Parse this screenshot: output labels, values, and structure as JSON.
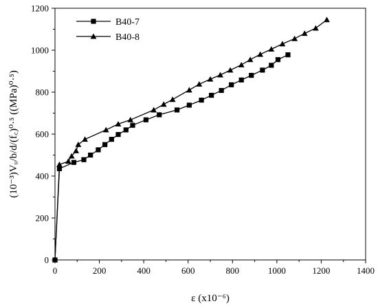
{
  "chart_data": {
    "type": "line",
    "xlabel": "ε (x10⁻⁶)",
    "ylabel": "(10⁻³)Vᵤ/b/d/(f꜀)⁰·⁵ ((MPa)⁰·⁵)",
    "xlim": [
      0,
      1400
    ],
    "ylim": [
      0,
      1200
    ],
    "x_ticks": [
      0,
      200,
      400,
      600,
      800,
      1000,
      1200,
      1400
    ],
    "y_ticks": [
      0,
      200,
      400,
      600,
      800,
      1000,
      1200
    ],
    "grid": false,
    "legend": "top-left",
    "series": [
      {
        "name": "B40-7",
        "marker": "square",
        "color": "#000000",
        "points": [
          [
            0,
            0
          ],
          [
            20,
            435
          ],
          [
            85,
            465
          ],
          [
            130,
            478
          ],
          [
            160,
            500
          ],
          [
            195,
            525
          ],
          [
            225,
            550
          ],
          [
            255,
            575
          ],
          [
            285,
            598
          ],
          [
            320,
            620
          ],
          [
            350,
            642
          ],
          [
            410,
            668
          ],
          [
            470,
            692
          ],
          [
            550,
            715
          ],
          [
            605,
            738
          ],
          [
            660,
            762
          ],
          [
            705,
            785
          ],
          [
            750,
            808
          ],
          [
            795,
            835
          ],
          [
            840,
            858
          ],
          [
            885,
            880
          ],
          [
            935,
            905
          ],
          [
            975,
            928
          ],
          [
            1005,
            955
          ],
          [
            1050,
            978
          ]
        ]
      },
      {
        "name": "B40-8",
        "marker": "triangle",
        "color": "#000000",
        "points": [
          [
            0,
            0
          ],
          [
            20,
            455
          ],
          [
            60,
            470
          ],
          [
            75,
            495
          ],
          [
            95,
            520
          ],
          [
            105,
            550
          ],
          [
            135,
            575
          ],
          [
            230,
            620
          ],
          [
            285,
            648
          ],
          [
            340,
            668
          ],
          [
            445,
            715
          ],
          [
            490,
            742
          ],
          [
            530,
            765
          ],
          [
            605,
            810
          ],
          [
            650,
            838
          ],
          [
            700,
            862
          ],
          [
            745,
            882
          ],
          [
            790,
            905
          ],
          [
            840,
            930
          ],
          [
            880,
            955
          ],
          [
            925,
            980
          ],
          [
            975,
            1005
          ],
          [
            1025,
            1030
          ],
          [
            1080,
            1055
          ],
          [
            1125,
            1080
          ],
          [
            1175,
            1105
          ],
          [
            1225,
            1145
          ]
        ]
      }
    ]
  }
}
